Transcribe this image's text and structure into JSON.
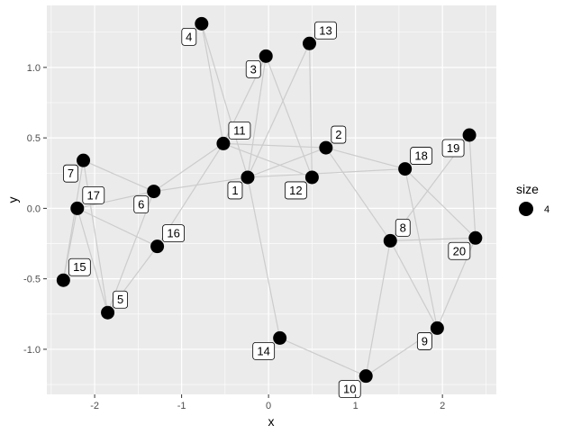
{
  "chart_data": {
    "type": "scatter",
    "subtype": "network-graph",
    "xlabel": "x",
    "ylabel": "y",
    "xlim": [
      -2.55,
      2.62
    ],
    "ylim": [
      -1.32,
      1.44
    ],
    "x_ticks": [
      -2,
      -1,
      0,
      1,
      2
    ],
    "x_tick_labels": [
      "-2",
      "-1",
      "0",
      "1",
      "2"
    ],
    "y_ticks": [
      -1.0,
      -0.5,
      0.0,
      0.5,
      1.0
    ],
    "y_tick_labels": [
      "-1.0",
      "-0.5",
      "0.0",
      "0.5",
      "1.0"
    ],
    "grid": true,
    "legend": {
      "title": "size",
      "label": "4",
      "placement": "right"
    },
    "colors": {
      "panel": "#ebebeb",
      "grid": "#ffffff",
      "edge": "#cccccc",
      "point": "#000000",
      "label_bg": "#ffffff"
    },
    "nodes": [
      {
        "id": "1",
        "x": -0.24,
        "y": 0.22,
        "label_pos": "below-left"
      },
      {
        "id": "2",
        "x": 0.66,
        "y": 0.43,
        "label_pos": "above-right"
      },
      {
        "id": "3",
        "x": -0.03,
        "y": 1.08,
        "label_pos": "below-left"
      },
      {
        "id": "4",
        "x": -0.77,
        "y": 1.31,
        "label_pos": "below-left"
      },
      {
        "id": "5",
        "x": -1.85,
        "y": -0.74,
        "label_pos": "above-right"
      },
      {
        "id": "6",
        "x": -1.32,
        "y": 0.12,
        "label_pos": "below-left"
      },
      {
        "id": "7",
        "x": -2.13,
        "y": 0.34,
        "label_pos": "below-left"
      },
      {
        "id": "8",
        "x": 1.4,
        "y": -0.23,
        "label_pos": "above-right"
      },
      {
        "id": "9",
        "x": 1.94,
        "y": -0.85,
        "label_pos": "below-left"
      },
      {
        "id": "10",
        "x": 1.12,
        "y": -1.19,
        "label_pos": "below-left"
      },
      {
        "id": "11",
        "x": -0.52,
        "y": 0.46,
        "label_pos": "above-right"
      },
      {
        "id": "12",
        "x": 0.5,
        "y": 0.22,
        "label_pos": "below-left"
      },
      {
        "id": "13",
        "x": 0.47,
        "y": 1.17,
        "label_pos": "above-right"
      },
      {
        "id": "14",
        "x": 0.13,
        "y": -0.92,
        "label_pos": "below-left"
      },
      {
        "id": "15",
        "x": -2.36,
        "y": -0.51,
        "label_pos": "above-right"
      },
      {
        "id": "16",
        "x": -1.28,
        "y": -0.27,
        "label_pos": "above-right"
      },
      {
        "id": "17",
        "x": -2.2,
        "y": 0.0,
        "label_pos": "above-right"
      },
      {
        "id": "18",
        "x": 1.57,
        "y": 0.28,
        "label_pos": "above-right"
      },
      {
        "id": "19",
        "x": 2.31,
        "y": 0.52,
        "label_pos": "below-left"
      },
      {
        "id": "20",
        "x": 2.38,
        "y": -0.21,
        "label_pos": "below-left"
      }
    ],
    "edges": [
      [
        "4",
        "11"
      ],
      [
        "4",
        "1"
      ],
      [
        "3",
        "11"
      ],
      [
        "3",
        "1"
      ],
      [
        "3",
        "12"
      ],
      [
        "13",
        "1"
      ],
      [
        "13",
        "12"
      ],
      [
        "11",
        "2"
      ],
      [
        "11",
        "12"
      ],
      [
        "11",
        "6"
      ],
      [
        "11",
        "16"
      ],
      [
        "1",
        "2"
      ],
      [
        "1",
        "18"
      ],
      [
        "1",
        "6"
      ],
      [
        "1",
        "14"
      ],
      [
        "2",
        "18"
      ],
      [
        "2",
        "8"
      ],
      [
        "18",
        "20"
      ],
      [
        "18",
        "9"
      ],
      [
        "19",
        "20"
      ],
      [
        "19",
        "8"
      ],
      [
        "8",
        "20"
      ],
      [
        "8",
        "9"
      ],
      [
        "8",
        "10"
      ],
      [
        "9",
        "10"
      ],
      [
        "9",
        "20"
      ],
      [
        "14",
        "10"
      ],
      [
        "7",
        "6"
      ],
      [
        "7",
        "5"
      ],
      [
        "7",
        "15"
      ],
      [
        "17",
        "6"
      ],
      [
        "17",
        "5"
      ],
      [
        "17",
        "15"
      ],
      [
        "17",
        "16"
      ],
      [
        "6",
        "5"
      ],
      [
        "16",
        "5"
      ]
    ]
  }
}
